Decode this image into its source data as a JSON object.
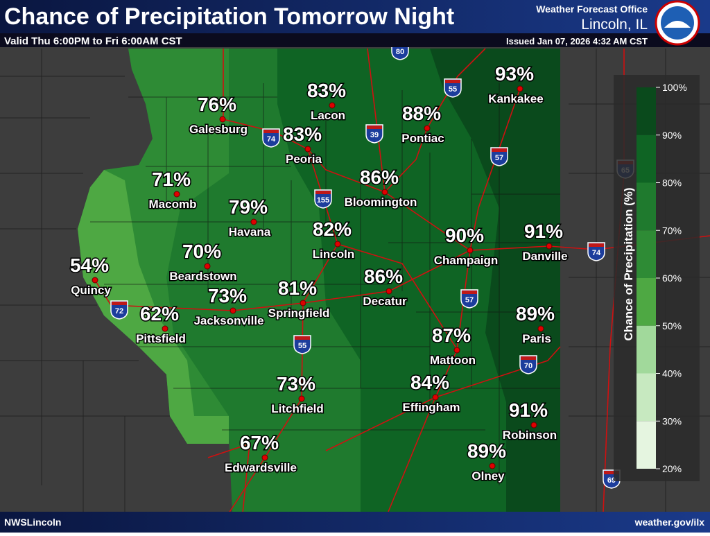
{
  "header": {
    "title": "Chance of Precipitation Tomorrow Night",
    "subtitle": "Valid Thu 6:00PM to Fri 6:00AM CST",
    "office": "Weather Forecast Office",
    "location": "Lincoln, IL",
    "issued": "Issued Jan 07, 2026 4:32 AM CST"
  },
  "cities": [
    {
      "name": "Galesburg",
      "value": "76%"
    },
    {
      "name": "Lacon",
      "value": "83%"
    },
    {
      "name": "Peoria",
      "value": "83%"
    },
    {
      "name": "Pontiac",
      "value": "88%"
    },
    {
      "name": "Kankakee",
      "value": "93%"
    },
    {
      "name": "Macomb",
      "value": "71%"
    },
    {
      "name": "Havana",
      "value": "79%"
    },
    {
      "name": "Bloomington",
      "value": "86%"
    },
    {
      "name": "Lincoln",
      "value": "82%"
    },
    {
      "name": "Champaign",
      "value": "90%"
    },
    {
      "name": "Danville",
      "value": "91%"
    },
    {
      "name": "Quincy",
      "value": "54%"
    },
    {
      "name": "Beardstown",
      "value": "70%"
    },
    {
      "name": "Jacksonville",
      "value": "73%"
    },
    {
      "name": "Springfield",
      "value": "81%"
    },
    {
      "name": "Decatur",
      "value": "86%"
    },
    {
      "name": "Pittsfield",
      "value": "62%"
    },
    {
      "name": "Paris",
      "value": "89%"
    },
    {
      "name": "Mattoon",
      "value": "87%"
    },
    {
      "name": "Litchfield",
      "value": "73%"
    },
    {
      "name": "Effingham",
      "value": "84%"
    },
    {
      "name": "Robinson",
      "value": "91%"
    },
    {
      "name": "Edwardsville",
      "value": "67%"
    },
    {
      "name": "Olney",
      "value": "89%"
    }
  ],
  "highways": [
    "80",
    "55",
    "74",
    "39",
    "57",
    "155",
    "65",
    "74",
    "72",
    "55",
    "57",
    "70",
    "69"
  ],
  "legend": {
    "title": "Chance of Precipitation (%)",
    "ticks": [
      "100%",
      "90%",
      "80%",
      "70%",
      "60%",
      "50%",
      "40%",
      "30%",
      "20%"
    ]
  },
  "footer": {
    "left": "NWSLincoln",
    "right": "weather.gov/ilx"
  }
}
